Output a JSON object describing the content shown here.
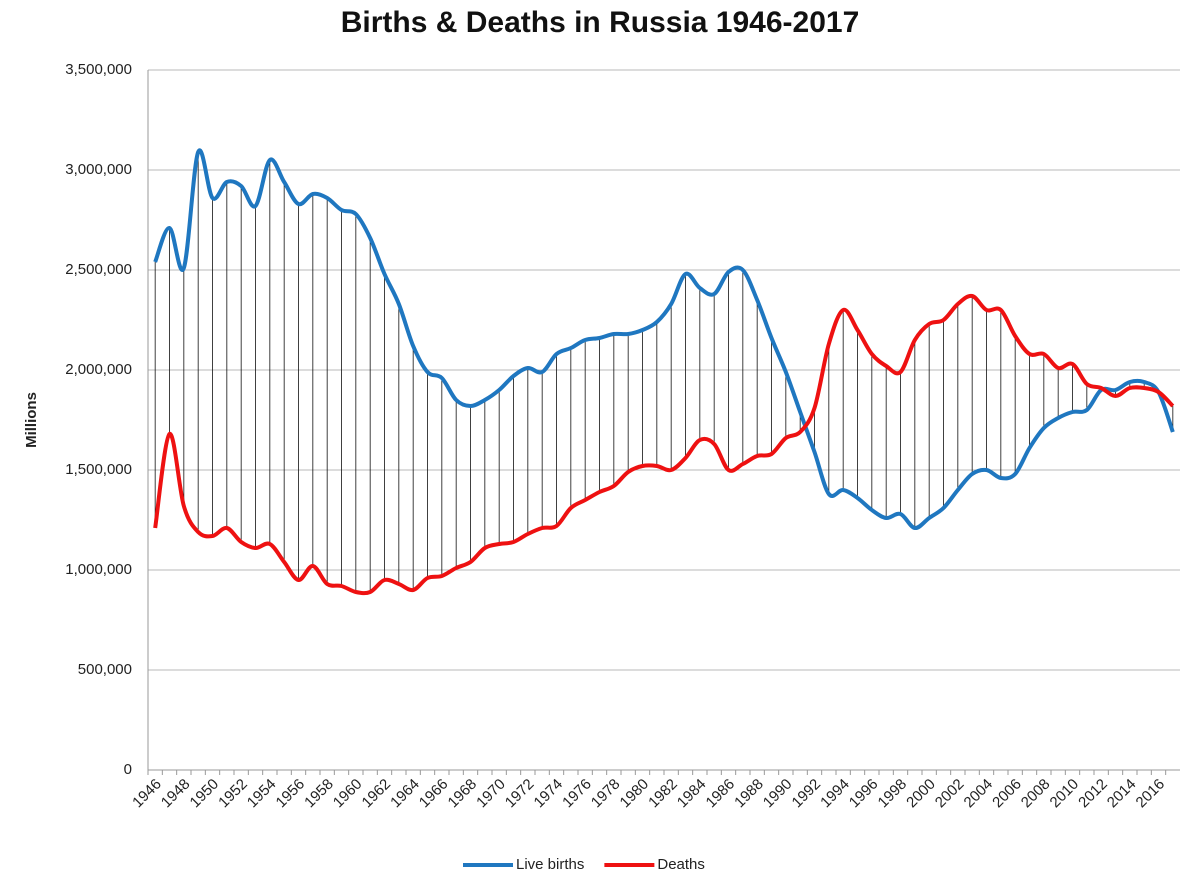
{
  "chart_data": {
    "type": "line",
    "title": "Births & Deaths in Russia 1946-2017",
    "y_label": "Millions",
    "categories": [
      "1946",
      null,
      "1948",
      null,
      "1950",
      null,
      "1952",
      null,
      "1954",
      null,
      "1956",
      null,
      "1958",
      null,
      "1960",
      null,
      "1962",
      null,
      "1964",
      null,
      "1966",
      null,
      "1968",
      null,
      "1970",
      null,
      "1972",
      null,
      "1974",
      null,
      "1976",
      null,
      "1978",
      null,
      "1980",
      null,
      "1982",
      null,
      "1984",
      null,
      "1986",
      null,
      "1988",
      null,
      "1990",
      null,
      "1992",
      null,
      "1994",
      null,
      "1996",
      null,
      "1998",
      null,
      "2000",
      null,
      "2002",
      null,
      "2004",
      null,
      "2006",
      null,
      "2008",
      null,
      "2010",
      null,
      "2012",
      null,
      "2014",
      null,
      "2016",
      null
    ],
    "series": [
      {
        "name": "Live births",
        "color": "#1f77c0",
        "values": [
          2540000,
          2710000,
          2510000,
          3090000,
          2860000,
          2940000,
          2920000,
          2820000,
          3050000,
          2940000,
          2830000,
          2880000,
          2860000,
          2800000,
          2780000,
          2660000,
          2480000,
          2330000,
          2120000,
          1990000,
          1960000,
          1850000,
          1820000,
          1850000,
          1900000,
          1970000,
          2010000,
          1990000,
          2080000,
          2110000,
          2150000,
          2160000,
          2180000,
          2180000,
          2200000,
          2240000,
          2330000,
          2480000,
          2410000,
          2380000,
          2490000,
          2500000,
          2350000,
          2160000,
          1990000,
          1790000,
          1590000,
          1380000,
          1400000,
          1360000,
          1300000,
          1260000,
          1280000,
          1210000,
          1260000,
          1310000,
          1400000,
          1480000,
          1500000,
          1460000,
          1480000,
          1610000,
          1710000,
          1760000,
          1790000,
          1800000,
          1900000,
          1900000,
          1940000,
          1940000,
          1890000,
          1690000
        ]
      },
      {
        "name": "Deaths",
        "color": "#ee1111",
        "values": [
          1210000,
          1680000,
          1320000,
          1190000,
          1170000,
          1210000,
          1140000,
          1110000,
          1130000,
          1040000,
          950000,
          1020000,
          930000,
          920000,
          890000,
          890000,
          950000,
          930000,
          900000,
          960000,
          970000,
          1010000,
          1040000,
          1110000,
          1130000,
          1140000,
          1180000,
          1210000,
          1220000,
          1310000,
          1350000,
          1390000,
          1420000,
          1490000,
          1520000,
          1520000,
          1500000,
          1560000,
          1650000,
          1630000,
          1500000,
          1530000,
          1570000,
          1580000,
          1660000,
          1690000,
          1810000,
          2130000,
          2300000,
          2200000,
          2080000,
          2020000,
          1990000,
          2150000,
          2230000,
          2250000,
          2330000,
          2370000,
          2300000,
          2300000,
          2170000,
          2080000,
          2080000,
          2010000,
          2030000,
          1930000,
          1910000,
          1870000,
          1910000,
          1910000,
          1890000,
          1820000
        ]
      }
    ],
    "ylim": [
      0,
      3500000
    ],
    "yticks": [
      0,
      {
        "value": 500000,
        "label": "500,000"
      },
      {
        "value": 1000000,
        "label": "1,000,000"
      },
      {
        "value": 1500000,
        "label": "1,500,000"
      },
      {
        "value": 2000000,
        "label": "2,000,000"
      },
      {
        "value": 2500000,
        "label": "2,500,000"
      },
      {
        "value": 3000000,
        "label": "3,000,000"
      },
      {
        "value": 3500000,
        "label": "3,500,000"
      }
    ],
    "grid": true,
    "drop_lines": true,
    "legend": "bottom"
  }
}
